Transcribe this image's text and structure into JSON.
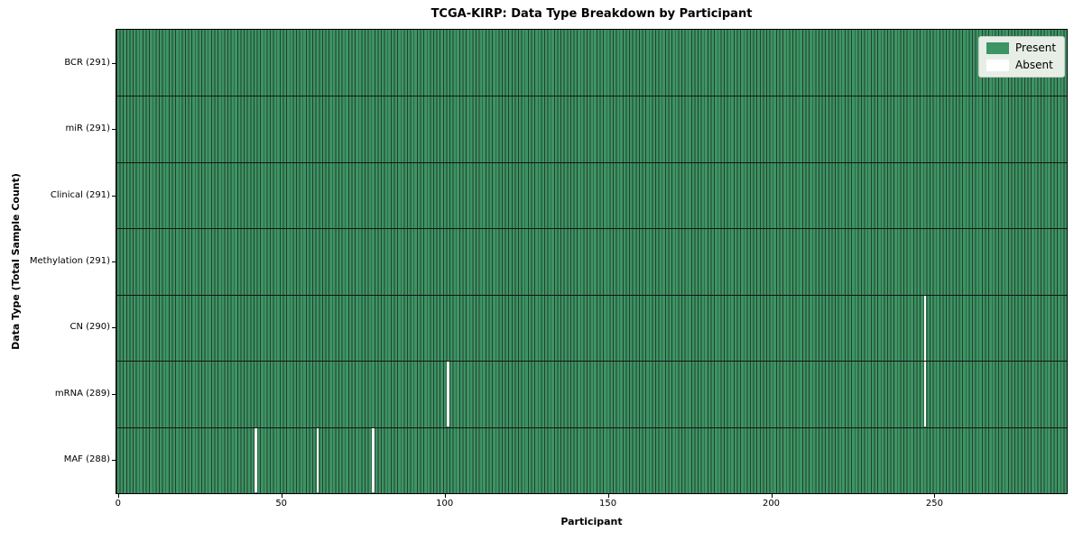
{
  "figure": {
    "title": "TCGA-KIRP: Data Type Breakdown by Participant",
    "xlabel": "Participant",
    "ylabel": "Data Type (Total Sample Count)",
    "legend": {
      "present_label": "Present",
      "absent_label": "Absent"
    }
  },
  "colors": {
    "present_fill": "#3d9464",
    "cell_edge": "#23402e",
    "absent_fill": "#ffffff",
    "row_divider": "#141414",
    "axes_edge": "#000000",
    "legend_bg": "#e7eee6",
    "legend_border": "#cbcbcb"
  },
  "chart_data": {
    "type": "heatmap",
    "title": "TCGA-KIRP: Data Type Breakdown by Participant",
    "xlabel": "Participant",
    "ylabel": "Data Type (Total Sample Count)",
    "legend": [
      "Present",
      "Absent"
    ],
    "legend_position": "upper right",
    "n_participants": 291,
    "x_ticks": [
      0,
      50,
      100,
      150,
      200,
      250
    ],
    "cell_states": {
      "present": 1,
      "absent": 0
    },
    "rows": [
      {
        "label": "BCR (291)",
        "data_type": "BCR",
        "present_count": 291,
        "absent_participants": []
      },
      {
        "label": "miR (291)",
        "data_type": "miR",
        "present_count": 291,
        "absent_participants": []
      },
      {
        "label": "Clinical (291)",
        "data_type": "Clinical",
        "present_count": 291,
        "absent_participants": []
      },
      {
        "label": "Methylation (291)",
        "data_type": "Methylation",
        "present_count": 291,
        "absent_participants": []
      },
      {
        "label": "CN (290)",
        "data_type": "CN",
        "present_count": 290,
        "absent_participants": [
          247
        ]
      },
      {
        "label": "mRNA (289)",
        "data_type": "mRNA",
        "present_count": 289,
        "absent_participants": [
          101,
          247
        ]
      },
      {
        "label": "MAF (288)",
        "data_type": "MAF",
        "present_count": 288,
        "absent_participants": [
          42,
          61,
          78
        ]
      }
    ]
  }
}
